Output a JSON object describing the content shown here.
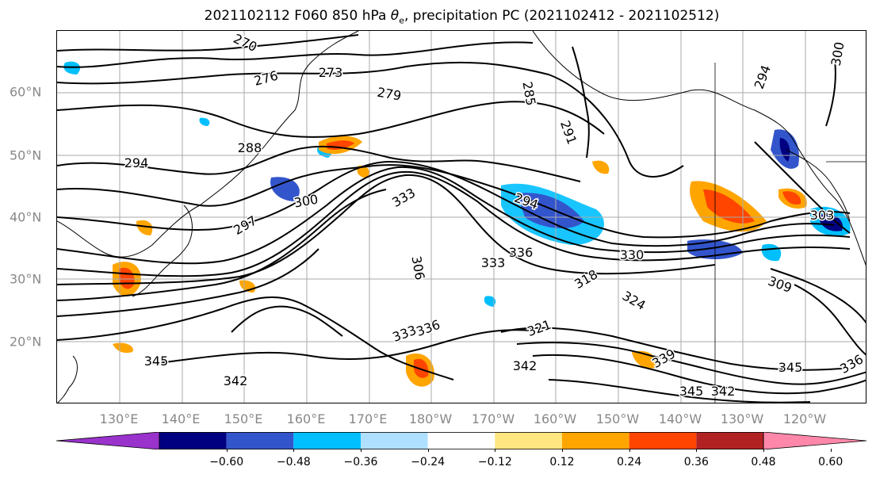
{
  "title_main": "2021102112 F060 850 hPa ",
  "title_symbol": "θ",
  "title_sub": "e",
  "title_rest": ", precipitation PC (2021102412 - 2021102512)",
  "lat_labels": [
    "60°N",
    "50°N",
    "40°N",
    "30°N",
    "20°N"
  ],
  "lon_labels": [
    "130°E",
    "140°E",
    "150°E",
    "160°E",
    "170°E",
    "180°W",
    "170°W",
    "160°W",
    "150°W",
    "140°W",
    "130°W",
    "120°W"
  ],
  "contour_labels": [
    {
      "text": "270"
    },
    {
      "text": "273"
    },
    {
      "text": "276"
    },
    {
      "text": "279"
    },
    {
      "text": "285"
    },
    {
      "text": "291"
    },
    {
      "text": "288"
    },
    {
      "text": "294"
    },
    {
      "text": "294"
    },
    {
      "text": "294"
    },
    {
      "text": "300"
    },
    {
      "text": "297"
    },
    {
      "text": "300"
    },
    {
      "text": "306"
    },
    {
      "text": "333"
    },
    {
      "text": "330"
    },
    {
      "text": "336"
    },
    {
      "text": "333"
    },
    {
      "text": "318"
    },
    {
      "text": "324"
    },
    {
      "text": "309"
    },
    {
      "text": "321"
    },
    {
      "text": "345"
    },
    {
      "text": "342"
    },
    {
      "text": "342"
    },
    {
      "text": "345"
    },
    {
      "text": "342"
    },
    {
      "text": "333"
    },
    {
      "text": "336"
    },
    {
      "text": "339"
    },
    {
      "text": "336"
    },
    {
      "text": "345"
    },
    {
      "text": "303"
    }
  ],
  "colorbar": {
    "colors": [
      "#9933cc",
      "#000080",
      "#3355cc",
      "#00bfff",
      "#b0e0ff",
      "#ffffff",
      "#ffe680",
      "#ffa500",
      "#ff4500",
      "#b22222",
      "#ff88aa"
    ],
    "ticks": [
      "−0.60",
      "−0.48",
      "−0.36",
      "−0.24",
      "−0.12",
      "0.12",
      "0.24",
      "0.36",
      "0.48",
      "0.60"
    ]
  }
}
